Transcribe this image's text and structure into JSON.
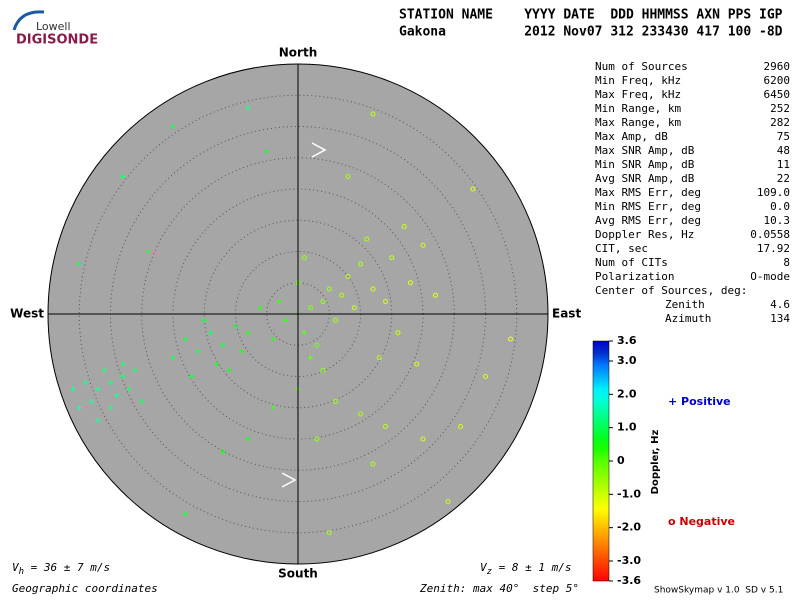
{
  "header": {
    "logo_top": "Lowell",
    "logo_bottom": "DIGISONDE",
    "labels": "STATION NAME    YYYY DATE  DDD HHMMSS AXN PPS IGP",
    "values": "Gakona          2012 Nov07 312 233430 417 100 -8D"
  },
  "stats": [
    [
      "Num of Sources",
      "2960"
    ],
    [
      "Min Freq, kHz",
      "6200"
    ],
    [
      "Max Freq, kHz",
      "6450"
    ],
    [
      "Min Range, km",
      "252"
    ],
    [
      "Max Range, km",
      "282"
    ],
    [
      "Max Amp, dB",
      "75"
    ],
    [
      "Max SNR Amp, dB",
      "48"
    ],
    [
      "Min SNR Amp, dB",
      "11"
    ],
    [
      "Avg SNR Amp, dB",
      "22"
    ],
    [
      "Max RMS Err, deg",
      "109.0"
    ],
    [
      "Min RMS Err, deg",
      "0.0"
    ],
    [
      "Avg RMS Err, deg",
      "10.3"
    ],
    [
      "Doppler Res, Hz",
      "0.0558"
    ],
    [
      "CIT, sec",
      "17.92"
    ],
    [
      "Num of CITs",
      "8"
    ],
    [
      "Polarization",
      "O-mode"
    ]
  ],
  "center": {
    "title": "Center of Sources, deg:",
    "rows": [
      [
        "Zenith",
        "4.6"
      ],
      [
        "Azimuth",
        "134"
      ]
    ]
  },
  "chart_data": {
    "type": "skymap",
    "directions": {
      "north": "North",
      "east": "East",
      "south": "South",
      "west": "West"
    },
    "rlim": [
      0,
      40
    ],
    "rticks": [
      5,
      10,
      15,
      20,
      25,
      30,
      35
    ],
    "x": [
      -32,
      -30,
      -33,
      -28,
      -29,
      -31,
      -35,
      -27,
      -34,
      -26,
      -30,
      -32,
      -25,
      -36,
      -28,
      -14,
      -12,
      -16,
      -10,
      -13,
      -18,
      -9,
      -15,
      -11,
      -20,
      -8,
      -17,
      0,
      2,
      4,
      1,
      -2,
      3,
      5,
      6,
      -3,
      7,
      2,
      -4,
      0,
      8,
      9,
      4,
      -6,
      1,
      10,
      12,
      14,
      15,
      18,
      11,
      16,
      20,
      13,
      22,
      17,
      19,
      6,
      0,
      10,
      -4,
      14,
      3,
      -8,
      20,
      12,
      -12,
      -20,
      -8,
      12,
      28,
      30,
      24,
      -18,
      -35,
      -28,
      5,
      34,
      -5,
      8,
      -24,
      26
    ],
    "y": [
      -12,
      -11,
      -14,
      -10,
      -13,
      -9,
      -15,
      -12,
      -11,
      -9,
      -15,
      -17,
      -14,
      -12,
      -8,
      -3,
      -5,
      -6,
      -2,
      -8,
      -4,
      -6,
      -1,
      -9,
      -7,
      -3,
      -10,
      0,
      1,
      2,
      -3,
      -1,
      -5,
      4,
      -1,
      2,
      3,
      -7,
      -4,
      5,
      6,
      1,
      -9,
      1,
      9,
      8,
      4,
      2,
      9,
      5,
      12,
      -3,
      11,
      -7,
      3,
      14,
      -8,
      -14,
      -12,
      -16,
      -15,
      -18,
      -20,
      -20,
      -20,
      -24,
      -22,
      30,
      33,
      32,
      20,
      -10,
      -30,
      -32,
      8,
      22,
      -35,
      -4,
      26,
      22,
      10,
      -18
    ],
    "doppler": [
      1.3,
      1.2,
      1.4,
      1.1,
      1.3,
      1.2,
      1.5,
      1.0,
      1.3,
      1.1,
      1.2,
      1.4,
      1.0,
      1.3,
      1.1,
      0.9,
      0.8,
      0.9,
      0.7,
      0.6,
      0.8,
      0.5,
      0.7,
      0.6,
      0.9,
      0.4,
      0.7,
      0.2,
      -0.2,
      -0.4,
      0.1,
      0.3,
      -0.1,
      -0.5,
      -0.6,
      0.3,
      -0.7,
      0.0,
      0.4,
      -0.2,
      -0.8,
      -0.9,
      -0.3,
      0.4,
      -0.4,
      -0.7,
      -1.0,
      -1.0,
      -0.8,
      -1.1,
      -0.6,
      -0.9,
      -1.0,
      -0.7,
      -1.2,
      -0.9,
      -1.0,
      -0.5,
      0.1,
      -0.6,
      0.3,
      -0.8,
      -0.4,
      0.5,
      -1.0,
      -0.7,
      0.6,
      0.8,
      1.2,
      -0.9,
      -1.2,
      -1.1,
      -0.9,
      0.7,
      0.9,
      1.0,
      -0.5,
      -1.3,
      0.6,
      -0.6,
      0.8,
      -1.0
    ],
    "clim": [
      -3.6,
      3.6
    ],
    "cticks": [
      3.6,
      {
        "value": 3,
        "label": "3.0"
      },
      {
        "value": 2,
        "label": "2.0"
      },
      {
        "value": 1,
        "label": "1.0"
      },
      0,
      {
        "value": -1,
        "label": "-1.0"
      },
      {
        "value": -2,
        "label": "-2.0"
      },
      {
        "value": -3,
        "label": "-3.0"
      },
      -3.6
    ],
    "colorbar_label": "Doppler, Hz",
    "legend": {
      "positive": "+ Positive",
      "negative": "o Negative"
    },
    "vh": {
      "symbol": "V",
      "sub": "h",
      "text": " = 36 ± 7 m/s"
    },
    "vz": {
      "symbol": "V",
      "sub": "z",
      "text": " = 8 ± 1 m/s"
    },
    "coords": "Geographic coordinates",
    "zenith_note": "Zenith: max 40°  step 5°",
    "version": "ShowSkymap v 1.0  SD v 5.1"
  }
}
